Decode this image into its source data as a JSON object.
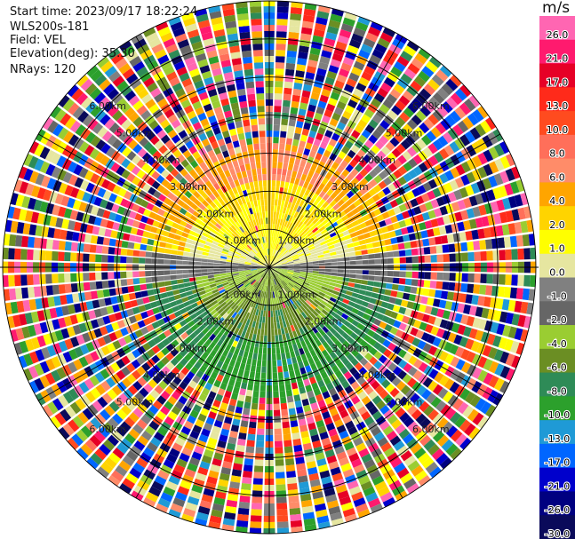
{
  "info": {
    "start_time": "Start time: 2023/09/17 18:22:24",
    "instrument": "WLS200s-181",
    "field": "Field: VEL",
    "elevation": "Elevation(deg): 35.30",
    "nrays": "NRays: 120"
  },
  "chart_data": {
    "type": "heatmap",
    "plot_kind": "PPI (plan position indicator) radial velocity",
    "field": "VEL",
    "elevation_deg": 35.3,
    "n_rays": 120,
    "max_range_km": 7.0,
    "range_rings_km": [
      1,
      2,
      3,
      4,
      5,
      6,
      7
    ],
    "range_ring_labels": [
      "1.00km",
      "2.00km",
      "3.00km",
      "4.00km",
      "5.00km",
      "6.00km"
    ],
    "colorbar": {
      "unit": "m/s",
      "vmin": -30.0,
      "vmax": 30.0,
      "tick_labels": [
        "26.0",
        "21.0",
        "17.0",
        "13.0",
        "10.0",
        "8.0",
        "6.0",
        "4.0",
        "2.0",
        "1.0",
        "0.0",
        "-1.0",
        "-2.0",
        "-4.0",
        "-6.0",
        "-8.0",
        "-10.0",
        "-13.0",
        "-17.0",
        "-21.0",
        "-26.0",
        "-30.0"
      ],
      "colors": [
        "#ff66b2",
        "#ff1a6e",
        "#e60026",
        "#ff2a1a",
        "#ff4b1f",
        "#ff6f5a",
        "#ff8c69",
        "#ffa500",
        "#ffd400",
        "#ffff00",
        "#e6e6a0",
        "#808080",
        "#666666",
        "#9acd32",
        "#6b8e23",
        "#2e8b57",
        "#2ca02c",
        "#1f9ad6",
        "#0066ff",
        "#0000cc",
        "#000080",
        "#0a0a5a"
      ]
    },
    "pattern": {
      "near_field": "positive velocities (yellow to orange) in the northern half, near-zero grey along the east-west axis, negative velocities (green) in the southern half",
      "far_field": "noisy multicolour returns beyond roughly 3-4 km"
    }
  }
}
